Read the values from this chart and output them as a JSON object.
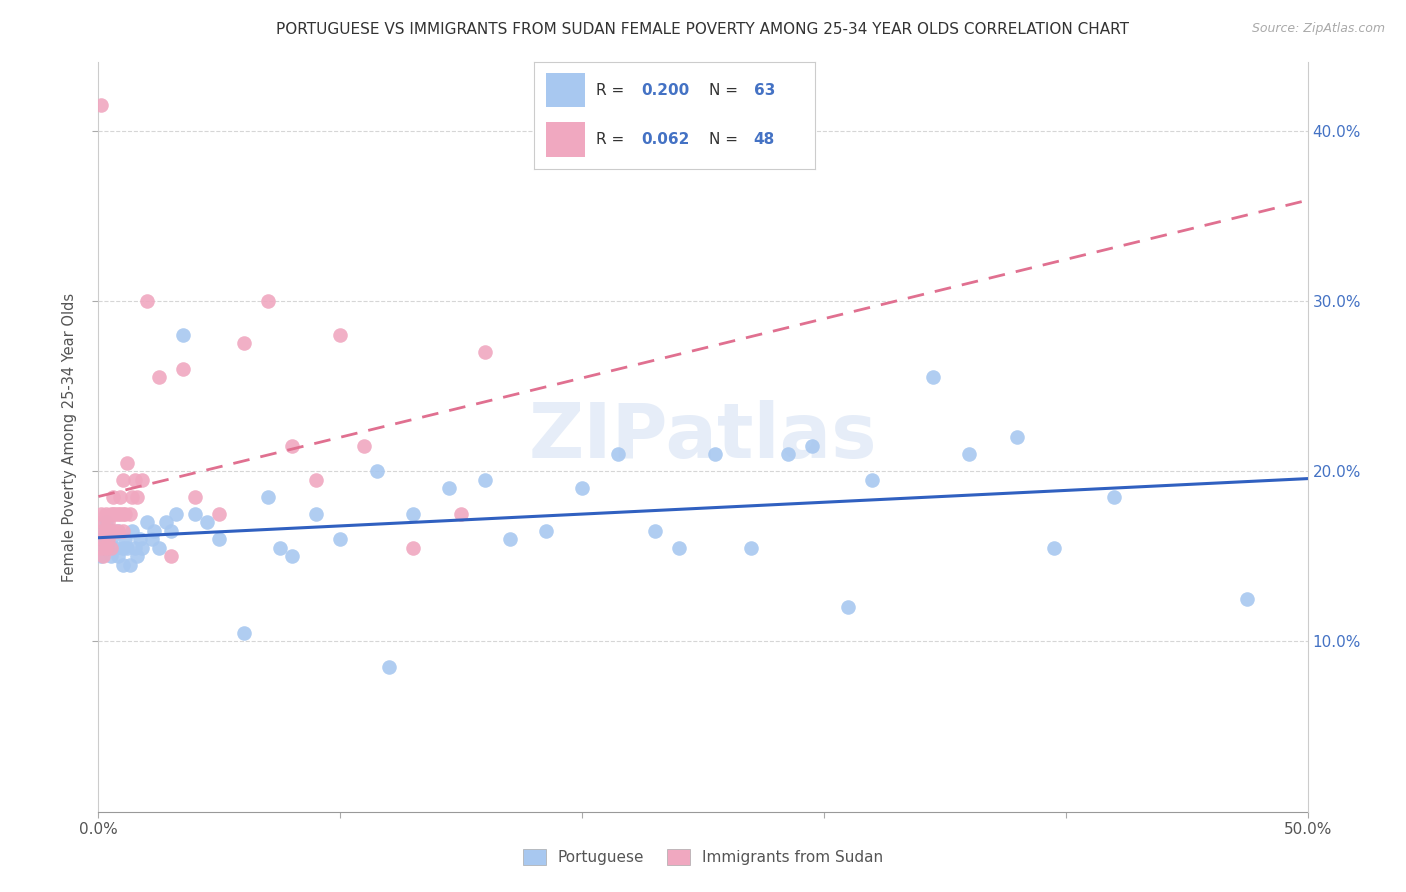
{
  "title": "PORTUGUESE VS IMMIGRANTS FROM SUDAN FEMALE POVERTY AMONG 25-34 YEAR OLDS CORRELATION CHART",
  "source": "Source: ZipAtlas.com",
  "ylabel": "Female Poverty Among 25-34 Year Olds",
  "xlim": [
    0.0,
    0.5
  ],
  "ylim": [
    0.0,
    0.44
  ],
  "xticks": [
    0.0,
    0.1,
    0.2,
    0.3,
    0.4,
    0.5
  ],
  "yticks": [
    0.1,
    0.2,
    0.3,
    0.4
  ],
  "xticklabels": [
    "0.0%",
    "",
    "",
    "",
    "",
    "50.0%"
  ],
  "yticklabels_right": [
    "10.0%",
    "20.0%",
    "30.0%",
    "40.0%"
  ],
  "watermark": "ZIPatlas",
  "series1_label": "Portuguese",
  "series2_label": "Immigrants from Sudan",
  "series1_color": "#a8c8f0",
  "series2_color": "#f0a8c0",
  "series1_line_color": "#3060c0",
  "series2_line_color": "#e07090",
  "series1_R": "0.200",
  "series1_N": "63",
  "series2_R": "0.062",
  "series2_N": "48",
  "legend_text_color": "#333333",
  "legend_value_color": "#4472c4",
  "series1_x": [
    0.001,
    0.001,
    0.002,
    0.002,
    0.003,
    0.003,
    0.004,
    0.005,
    0.005,
    0.006,
    0.007,
    0.008,
    0.008,
    0.01,
    0.01,
    0.011,
    0.012,
    0.013,
    0.014,
    0.015,
    0.016,
    0.017,
    0.018,
    0.02,
    0.022,
    0.023,
    0.025,
    0.028,
    0.03,
    0.032,
    0.035,
    0.04,
    0.045,
    0.05,
    0.06,
    0.07,
    0.075,
    0.08,
    0.09,
    0.1,
    0.115,
    0.12,
    0.13,
    0.145,
    0.16,
    0.17,
    0.185,
    0.2,
    0.215,
    0.23,
    0.24,
    0.255,
    0.27,
    0.285,
    0.295,
    0.31,
    0.32,
    0.345,
    0.36,
    0.38,
    0.395,
    0.42,
    0.475
  ],
  "series1_y": [
    0.15,
    0.16,
    0.155,
    0.165,
    0.16,
    0.17,
    0.155,
    0.16,
    0.15,
    0.165,
    0.155,
    0.15,
    0.165,
    0.155,
    0.145,
    0.16,
    0.155,
    0.145,
    0.165,
    0.155,
    0.15,
    0.16,
    0.155,
    0.17,
    0.16,
    0.165,
    0.155,
    0.17,
    0.165,
    0.175,
    0.28,
    0.175,
    0.17,
    0.16,
    0.105,
    0.185,
    0.155,
    0.15,
    0.175,
    0.16,
    0.2,
    0.085,
    0.175,
    0.19,
    0.195,
    0.16,
    0.165,
    0.19,
    0.21,
    0.165,
    0.155,
    0.21,
    0.155,
    0.21,
    0.215,
    0.12,
    0.195,
    0.255,
    0.21,
    0.22,
    0.155,
    0.185,
    0.125
  ],
  "series2_x": [
    0.001,
    0.001,
    0.001,
    0.002,
    0.002,
    0.002,
    0.003,
    0.003,
    0.003,
    0.004,
    0.004,
    0.005,
    0.005,
    0.005,
    0.006,
    0.006,
    0.007,
    0.007,
    0.008,
    0.008,
    0.009,
    0.009,
    0.01,
    0.01,
    0.01,
    0.011,
    0.012,
    0.013,
    0.014,
    0.015,
    0.016,
    0.018,
    0.02,
    0.025,
    0.03,
    0.035,
    0.04,
    0.05,
    0.06,
    0.07,
    0.08,
    0.09,
    0.1,
    0.11,
    0.13,
    0.15,
    0.16,
    0.001
  ],
  "series2_y": [
    0.155,
    0.165,
    0.175,
    0.16,
    0.15,
    0.17,
    0.165,
    0.155,
    0.175,
    0.16,
    0.17,
    0.175,
    0.155,
    0.165,
    0.175,
    0.185,
    0.165,
    0.175,
    0.165,
    0.175,
    0.175,
    0.185,
    0.165,
    0.175,
    0.195,
    0.175,
    0.205,
    0.175,
    0.185,
    0.195,
    0.185,
    0.195,
    0.3,
    0.255,
    0.15,
    0.26,
    0.185,
    0.175,
    0.275,
    0.3,
    0.215,
    0.195,
    0.28,
    0.215,
    0.155,
    0.175,
    0.27,
    0.415
  ]
}
